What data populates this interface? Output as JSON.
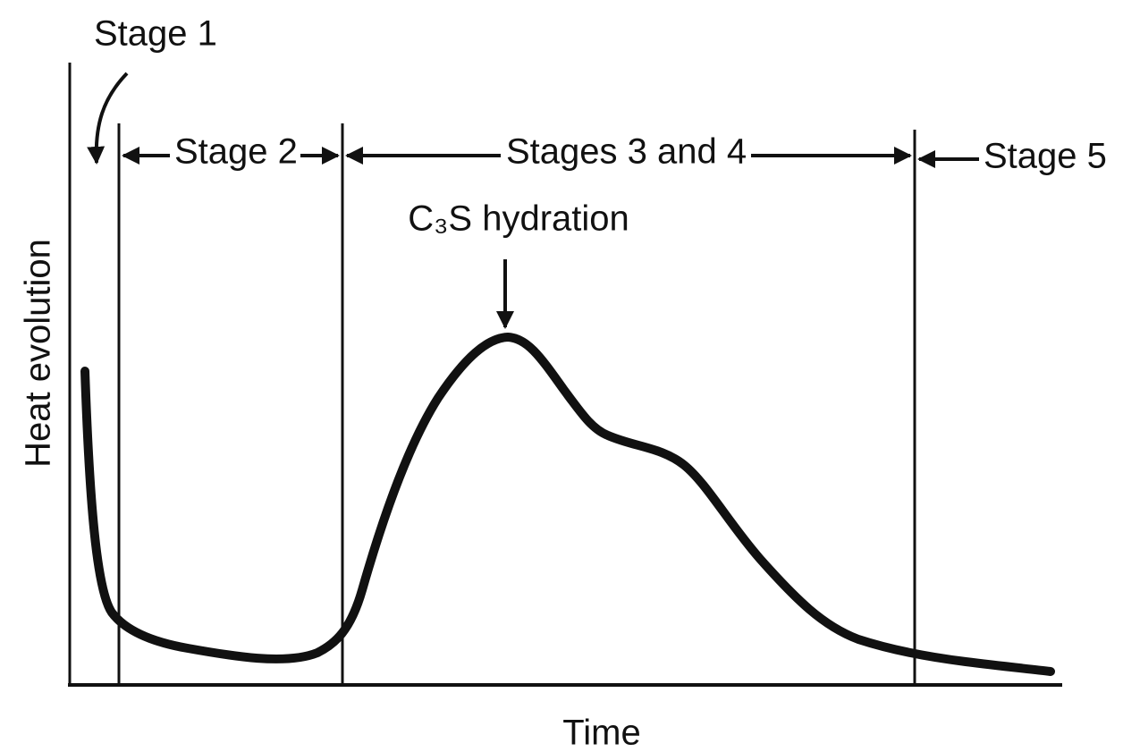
{
  "labels": {
    "stage1": "Stage 1",
    "stage2": "Stage 2",
    "stages34": "Stages 3 and 4",
    "stage5": "Stage 5",
    "peak": "C₃S hydration"
  },
  "axes": {
    "y": "Heat evolution",
    "x": "Time"
  }
}
